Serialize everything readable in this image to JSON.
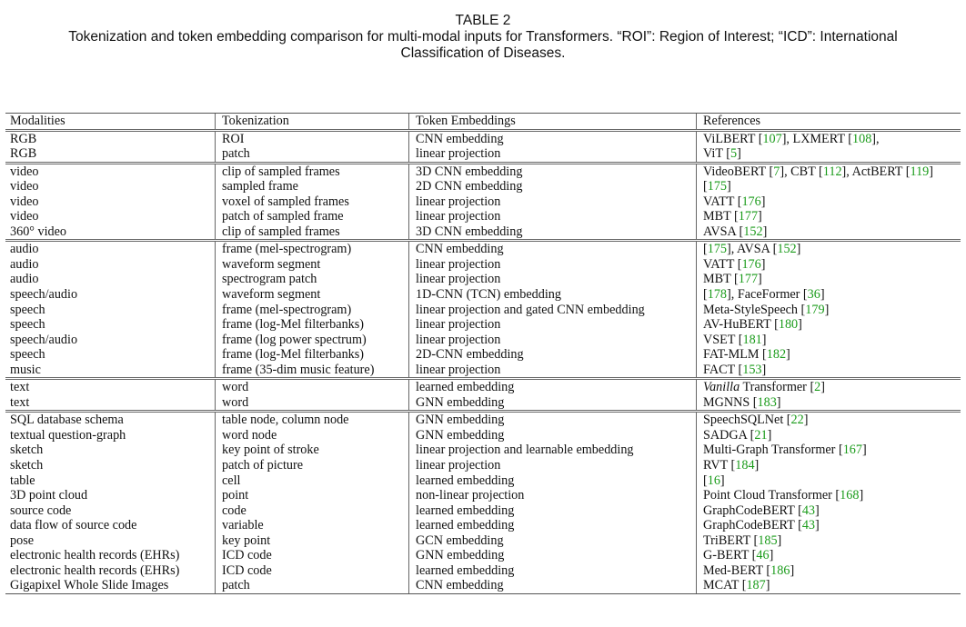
{
  "caption": {
    "table_number": "TABLE 2",
    "text": "Tokenization and token embedding comparison for multi-modal inputs for Transformers. “ROI”: Region of Interest; “ICD”: International Classification of Diseases."
  },
  "columns": [
    "Modalities",
    "Tokenization",
    "Token Embeddings",
    "References"
  ],
  "colors": {
    "reference_link": "#1a9b1a",
    "text": "#111111",
    "rule": "#555555"
  },
  "groups": [
    {
      "rows": [
        [
          "RGB",
          "ROI",
          "CNN embedding",
          [
            [
              "ViLBERT [",
              ""
            ],
            [
              "107",
              "link"
            ],
            [
              "], LXMERT [",
              ""
            ],
            [
              "108",
              "link"
            ],
            [
              "],",
              ""
            ]
          ]
        ],
        [
          "RGB",
          "patch",
          "linear projection",
          [
            [
              "ViT [",
              ""
            ],
            [
              "5",
              "link"
            ],
            [
              "]",
              ""
            ]
          ]
        ]
      ]
    },
    {
      "rows": [
        [
          "video",
          "clip of sampled frames",
          "3D CNN embedding",
          [
            [
              "VideoBERT [",
              ""
            ],
            [
              "7",
              "link"
            ],
            [
              "], CBT [",
              ""
            ],
            [
              "112",
              "link"
            ],
            [
              "], ActBERT [",
              ""
            ],
            [
              "119",
              "link"
            ],
            [
              "]",
              ""
            ]
          ]
        ],
        [
          "video",
          "sampled frame",
          "2D CNN embedding",
          [
            [
              " [",
              ""
            ],
            [
              "175",
              "link"
            ],
            [
              "]",
              ""
            ]
          ]
        ],
        [
          "video",
          "voxel of sampled frames",
          "linear projection",
          [
            [
              "VATT [",
              ""
            ],
            [
              "176",
              "link"
            ],
            [
              "]",
              ""
            ]
          ]
        ],
        [
          "video",
          "patch of sampled frame",
          "linear projection",
          [
            [
              "MBT [",
              ""
            ],
            [
              "177",
              "link"
            ],
            [
              "]",
              ""
            ]
          ]
        ],
        [
          "360° video",
          "clip of sampled frames",
          "3D CNN embedding",
          [
            [
              "AVSA [",
              ""
            ],
            [
              "152",
              "link"
            ],
            [
              "]",
              ""
            ]
          ]
        ]
      ]
    },
    {
      "rows": [
        [
          "audio",
          "frame (mel-spectrogram)",
          "CNN embedding",
          [
            [
              " [",
              ""
            ],
            [
              "175",
              "link"
            ],
            [
              "], AVSA [",
              ""
            ],
            [
              "152",
              "link"
            ],
            [
              "]",
              ""
            ]
          ]
        ],
        [
          "audio",
          "waveform segment",
          "linear projection",
          [
            [
              "VATT [",
              ""
            ],
            [
              "176",
              "link"
            ],
            [
              "]",
              ""
            ]
          ]
        ],
        [
          "audio",
          "spectrogram patch",
          "linear projection",
          [
            [
              "MBT [",
              ""
            ],
            [
              "177",
              "link"
            ],
            [
              "]",
              ""
            ]
          ]
        ],
        [
          "speech/audio",
          "waveform segment",
          "1D-CNN (TCN) embedding",
          [
            [
              " [",
              ""
            ],
            [
              "178",
              "link"
            ],
            [
              "], FaceFormer [",
              ""
            ],
            [
              "36",
              "link"
            ],
            [
              "]",
              ""
            ]
          ]
        ],
        [
          "speech",
          "frame (mel-spectrogram)",
          "linear projection and gated CNN embedding",
          [
            [
              "Meta-StyleSpeech [",
              ""
            ],
            [
              "179",
              "link"
            ],
            [
              "]",
              ""
            ]
          ]
        ],
        [
          "speech",
          "frame (log-Mel filterbanks)",
          "linear projection",
          [
            [
              "AV-HuBERT [",
              ""
            ],
            [
              "180",
              "link"
            ],
            [
              "]",
              ""
            ]
          ]
        ],
        [
          "speech/audio",
          "frame (log power spectrum)",
          "linear projection",
          [
            [
              "VSET [",
              ""
            ],
            [
              "181",
              "link"
            ],
            [
              "]",
              ""
            ]
          ]
        ],
        [
          "speech",
          "frame (log-Mel filterbanks)",
          "2D-CNN embedding",
          [
            [
              "FAT-MLM [",
              ""
            ],
            [
              "182",
              "link"
            ],
            [
              "]",
              ""
            ]
          ]
        ],
        [
          "music",
          "frame (35-dim music feature)",
          "linear projection",
          [
            [
              "FACT [",
              ""
            ],
            [
              "153",
              "link"
            ],
            [
              "]",
              ""
            ]
          ]
        ]
      ]
    },
    {
      "rows": [
        [
          "text",
          "word",
          "learned embedding",
          [
            [
              "Vanilla",
              "italic"
            ],
            [
              " Transformer [",
              ""
            ],
            [
              "2",
              "link"
            ],
            [
              "]",
              ""
            ]
          ]
        ],
        [
          "text",
          "word",
          "GNN embedding",
          [
            [
              "MGNNS [",
              ""
            ],
            [
              "183",
              "link"
            ],
            [
              "]",
              ""
            ]
          ]
        ]
      ]
    },
    {
      "rows": [
        [
          "SQL database schema",
          "table node, column node",
          "GNN embedding",
          [
            [
              "SpeechSQLNet [",
              ""
            ],
            [
              "22",
              "link"
            ],
            [
              "]",
              ""
            ]
          ]
        ],
        [
          "textual question-graph",
          "word node",
          "GNN embedding",
          [
            [
              "SADGA [",
              ""
            ],
            [
              "21",
              "link"
            ],
            [
              "]",
              ""
            ]
          ]
        ],
        [
          "sketch",
          "key point of stroke",
          "linear projection and learnable embedding",
          [
            [
              "Multi-Graph Transformer [",
              ""
            ],
            [
              "167",
              "link"
            ],
            [
              "]",
              ""
            ]
          ]
        ],
        [
          "sketch",
          "patch of picture",
          "linear projection",
          [
            [
              "RVT [",
              ""
            ],
            [
              "184",
              "link"
            ],
            [
              "]",
              ""
            ]
          ]
        ],
        [
          "table",
          "cell",
          "learned embedding",
          [
            [
              " [",
              ""
            ],
            [
              "16",
              "link"
            ],
            [
              "]",
              ""
            ]
          ]
        ],
        [
          "3D point cloud",
          "point",
          "non-linear projection",
          [
            [
              "Point Cloud Transformer [",
              ""
            ],
            [
              "168",
              "link"
            ],
            [
              "]",
              ""
            ]
          ]
        ],
        [
          "source code",
          "code",
          "learned embedding",
          [
            [
              "GraphCodeBERT [",
              ""
            ],
            [
              "43",
              "link"
            ],
            [
              "]",
              ""
            ]
          ]
        ],
        [
          "data flow of source code",
          "variable",
          "learned embedding",
          [
            [
              "GraphCodeBERT [",
              ""
            ],
            [
              "43",
              "link"
            ],
            [
              "]",
              ""
            ]
          ]
        ],
        [
          "pose",
          "key point",
          "GCN embedding",
          [
            [
              "TriBERT [",
              ""
            ],
            [
              "185",
              "link"
            ],
            [
              "]",
              ""
            ]
          ]
        ],
        [
          "electronic health records (EHRs)",
          "ICD code",
          "GNN embedding",
          [
            [
              "G-BERT [",
              ""
            ],
            [
              "46",
              "link"
            ],
            [
              "]",
              ""
            ]
          ]
        ],
        [
          "electronic health records (EHRs)",
          "ICD code",
          "learned embedding",
          [
            [
              "Med-BERT [",
              ""
            ],
            [
              "186",
              "link"
            ],
            [
              "]",
              ""
            ]
          ]
        ],
        [
          "Gigapixel Whole Slide Images",
          "patch",
          "CNN embedding",
          [
            [
              "MCAT [",
              ""
            ],
            [
              "187",
              "link"
            ],
            [
              "]",
              ""
            ]
          ]
        ]
      ]
    }
  ]
}
